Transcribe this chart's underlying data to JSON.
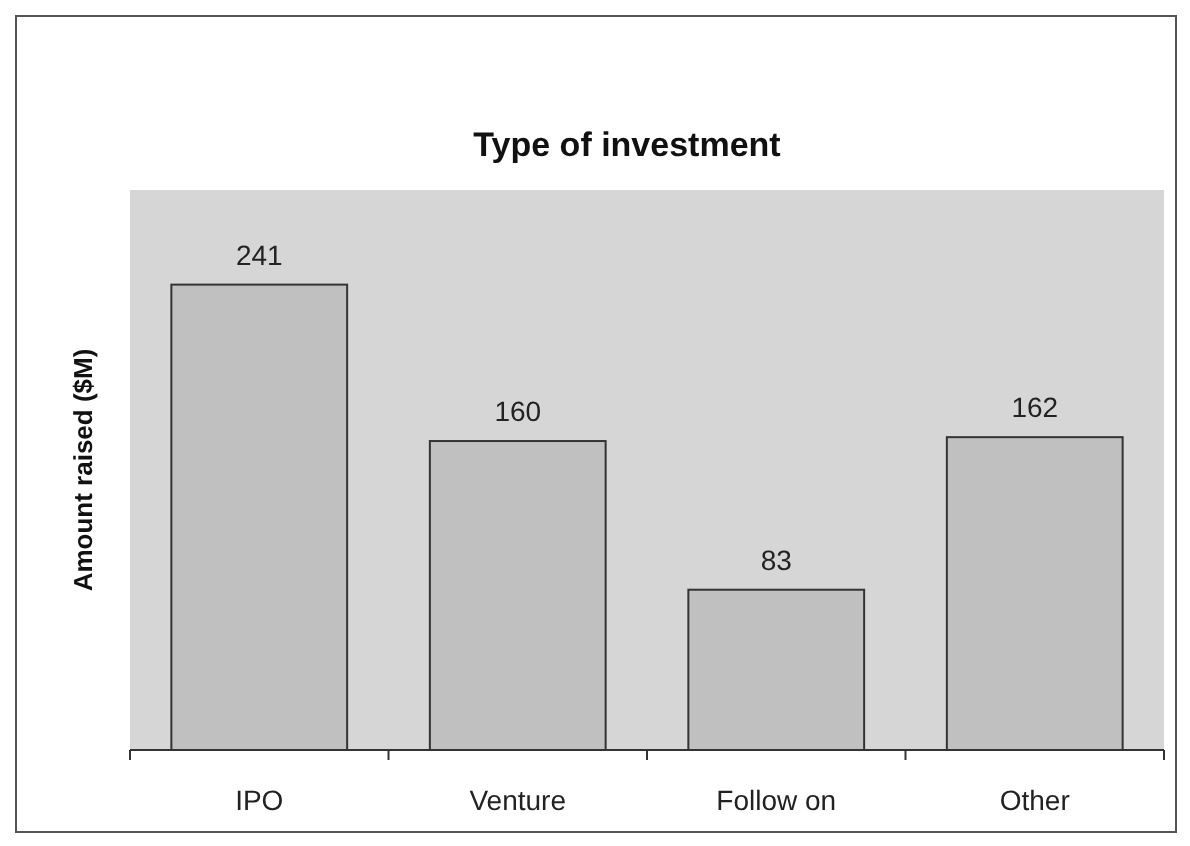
{
  "chart_data": {
    "type": "bar",
    "title": "Type of investment",
    "ylabel": "Amount raised ($M)",
    "categories": [
      "IPO",
      "Venture",
      "Follow on",
      "Other"
    ],
    "values": [
      241,
      160,
      83,
      162
    ],
    "color": "#c0c0c0",
    "ylim": [
      0,
      290
    ],
    "tick_labels": "x",
    "data_labels": true
  }
}
